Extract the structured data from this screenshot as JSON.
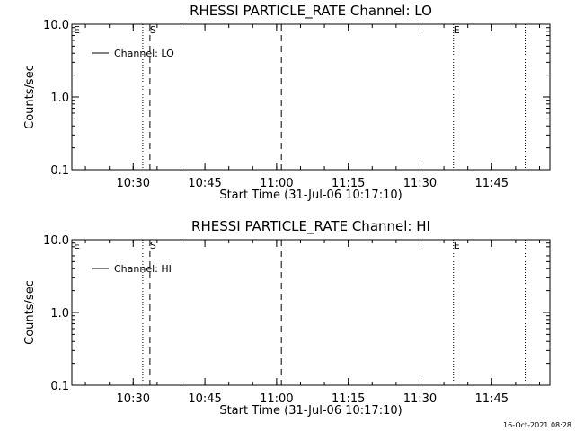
{
  "chart_data": [
    {
      "type": "line",
      "title": "RHESSI PARTICLE_RATE Channel: LO",
      "xlabel": "Start Time (31-Jul-06 10:17:10)",
      "ylabel": "Counts/sec",
      "xlim": [
        "10:17:10",
        "11:57:10"
      ],
      "ylim": [
        0.1,
        10.0
      ],
      "yscale": "log",
      "x_ticks": [
        "10:30",
        "10:45",
        "11:00",
        "11:15",
        "11:30",
        "11:45"
      ],
      "y_ticks": [
        "0.1",
        "1.0",
        "10.0"
      ],
      "grid": false,
      "legend": {
        "position": "top-left",
        "entries": [
          "Channel: LO"
        ]
      },
      "series": [
        {
          "name": "Channel: LO",
          "x": [],
          "y": []
        }
      ],
      "vertical_markers": [
        {
          "time": "10:32:00",
          "style": "dotted",
          "label": ""
        },
        {
          "time": "10:33:30",
          "style": "dashed",
          "label": "S"
        },
        {
          "time": "11:01:00",
          "style": "dashed",
          "label": ""
        },
        {
          "time": "11:37:00",
          "style": "dotted",
          "label": "E"
        },
        {
          "time": "11:52:00",
          "style": "dotted",
          "label": ""
        }
      ],
      "corner_label": "E"
    },
    {
      "type": "line",
      "title": "RHESSI PARTICLE_RATE Channel: HI",
      "xlabel": "Start Time (31-Jul-06 10:17:10)",
      "ylabel": "Counts/sec",
      "xlim": [
        "10:17:10",
        "11:57:10"
      ],
      "ylim": [
        0.1,
        10.0
      ],
      "yscale": "log",
      "x_ticks": [
        "10:30",
        "10:45",
        "11:00",
        "11:15",
        "11:30",
        "11:45"
      ],
      "y_ticks": [
        "0.1",
        "1.0",
        "10.0"
      ],
      "grid": false,
      "legend": {
        "position": "top-left",
        "entries": [
          "Channel: HI"
        ]
      },
      "series": [
        {
          "name": "Channel: HI",
          "x": [],
          "y": []
        }
      ],
      "vertical_markers": [
        {
          "time": "10:32:00",
          "style": "dotted",
          "label": ""
        },
        {
          "time": "10:33:30",
          "style": "dashed",
          "label": "S"
        },
        {
          "time": "11:01:00",
          "style": "dashed",
          "label": ""
        },
        {
          "time": "11:37:00",
          "style": "dotted",
          "label": "E"
        },
        {
          "time": "11:52:00",
          "style": "dotted",
          "label": ""
        }
      ],
      "corner_label": "E"
    }
  ],
  "footer": {
    "timestamp": "16-Oct-2021 08:28"
  }
}
